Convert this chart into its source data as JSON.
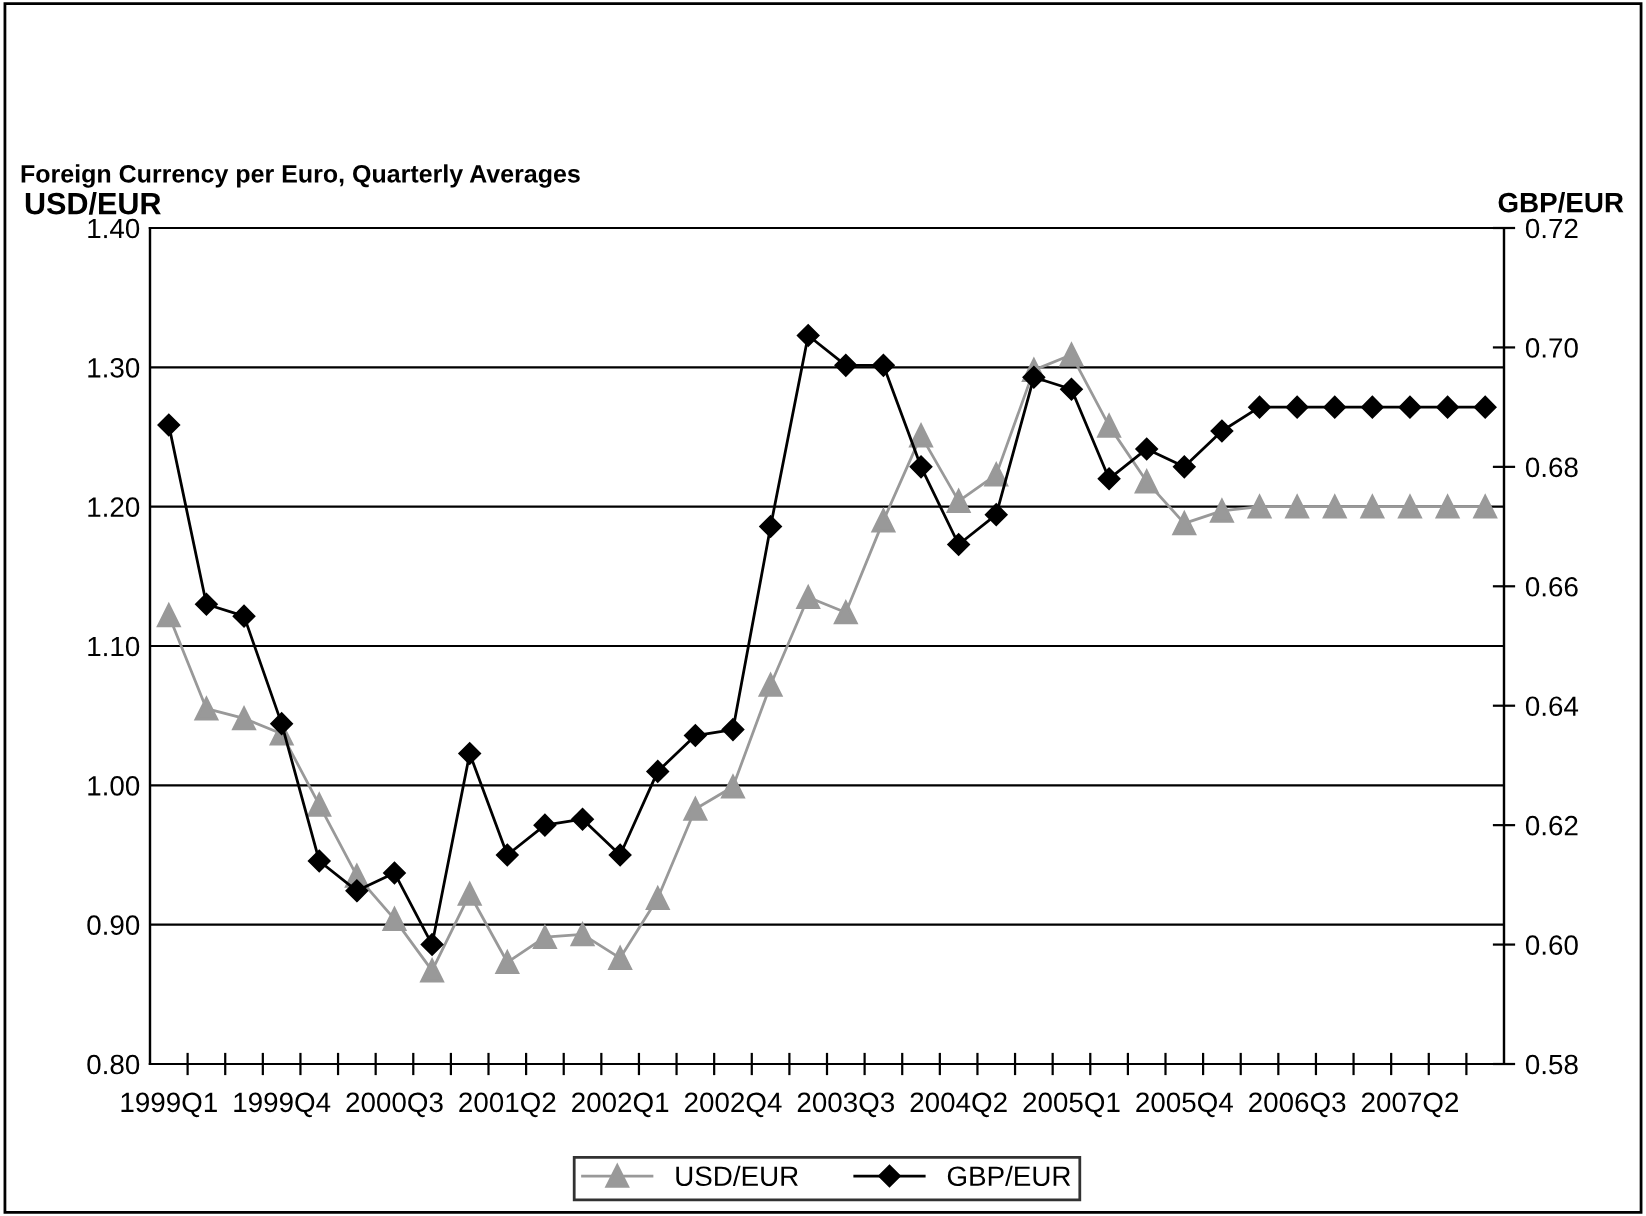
{
  "chart_data": {
    "type": "line",
    "title": "Foreign Currency per Euro, Quarterly Averages",
    "ylabel": "USD/EUR",
    "y2label": "GBP/EUR",
    "categories": [
      "1999Q1",
      null,
      null,
      "1999Q4",
      null,
      null,
      "2000Q3",
      null,
      null,
      "2001Q2",
      null,
      null,
      "2002Q1",
      null,
      null,
      "2002Q4",
      null,
      null,
      "2003Q3",
      null,
      null,
      "2004Q2",
      null,
      null,
      "2005Q1",
      null,
      null,
      "2005Q4",
      null,
      null,
      "2006Q3",
      null,
      null,
      "2007Q2",
      null,
      null
    ],
    "series": [
      {
        "name": "USD/EUR",
        "color": "#999999",
        "marker": "triangle",
        "values": [
          1.122,
          1.055,
          1.048,
          1.037,
          0.986,
          0.935,
          0.904,
          0.867,
          0.922,
          0.873,
          0.891,
          0.893,
          0.876,
          0.919,
          0.983,
          0.999,
          1.072,
          1.135,
          1.124,
          1.19,
          1.251,
          1.204,
          1.223,
          1.298,
          1.309,
          1.258,
          1.218,
          1.188,
          1.197,
          1.2,
          1.2,
          1.2,
          1.2,
          1.2,
          1.2,
          1.2
        ]
      },
      {
        "name": "GBP/EUR",
        "color": "#000000",
        "marker": "diamond",
        "axis": "y2",
        "values": [
          0.687,
          0.657,
          0.655,
          0.637,
          0.614,
          0.609,
          0.612,
          0.6,
          0.632,
          0.615,
          0.62,
          0.621,
          0.615,
          0.629,
          0.635,
          0.636,
          0.67,
          0.702,
          0.697,
          0.697,
          0.68,
          0.667,
          0.672,
          0.695,
          0.693,
          0.678,
          0.683,
          0.68,
          0.686,
          0.69,
          0.69,
          0.69,
          0.69,
          0.69,
          0.69,
          0.69
        ]
      }
    ],
    "ylim": [
      0.8,
      1.4
    ],
    "yticks": [
      {
        "value": 0.8,
        "label": "0.80"
      },
      {
        "value": 0.9,
        "label": "0.90"
      },
      {
        "value": 1.0,
        "label": "1.00"
      },
      {
        "value": 1.1,
        "label": "1.10"
      },
      {
        "value": 1.2,
        "label": "1.20"
      },
      {
        "value": 1.3,
        "label": "1.30"
      },
      {
        "value": 1.4,
        "label": "1.40"
      }
    ],
    "y2lim": [
      0.58,
      0.72
    ],
    "y2ticks": [
      0.58,
      {
        "value": 0.6,
        "label": "0.60"
      },
      0.62,
      0.64,
      0.66,
      0.68,
      {
        "value": 0.7,
        "label": "0.70"
      },
      0.72
    ],
    "grid": "y",
    "legend": "bottom",
    "line_style": "solid"
  }
}
